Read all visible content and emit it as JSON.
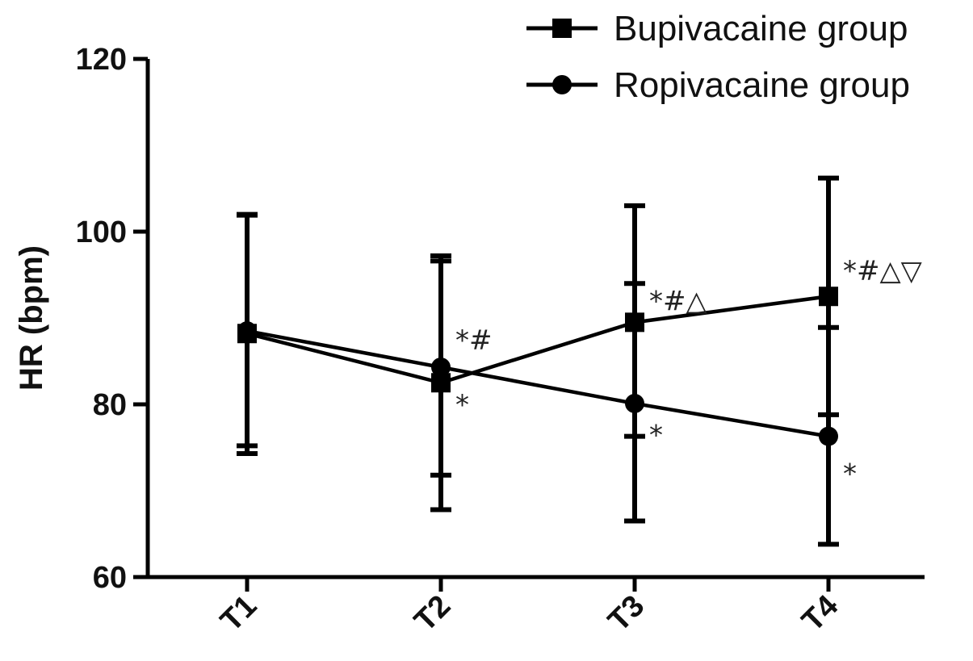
{
  "chart_data": {
    "type": "line",
    "title": "",
    "xlabel": "",
    "ylabel": "HR (bpm)",
    "categories": [
      "T1",
      "T2",
      "T3",
      "T4"
    ],
    "ylim": [
      60,
      120
    ],
    "yticks": [
      "60",
      "80",
      "100",
      "120"
    ],
    "grid": false,
    "legend_position": "top-right",
    "series": [
      {
        "name": "Bupivacaine group",
        "marker": "square",
        "values": [
          88.2,
          82.5,
          89.5,
          92.5
        ],
        "error_low": [
          74.3,
          67.8,
          76.3,
          78.8
        ],
        "error_high": [
          102.0,
          97.2,
          103.0,
          106.2
        ]
      },
      {
        "name": "Ropivacaine group",
        "marker": "circle",
        "values": [
          88.5,
          84.3,
          80.1,
          76.3
        ],
        "error_low": [
          75.2,
          71.8,
          66.5,
          63.8
        ],
        "error_high": [
          101.9,
          96.6,
          94.0,
          88.9
        ]
      }
    ],
    "annotations": [
      {
        "category": "T2",
        "y": 87.5,
        "text": "*#"
      },
      {
        "category": "T2",
        "y": 80.0,
        "text": "*"
      },
      {
        "category": "T3",
        "y": 92.0,
        "text": "*#△"
      },
      {
        "category": "T3",
        "y": 76.5,
        "text": "*"
      },
      {
        "category": "T4",
        "y": 95.5,
        "text": "*#△▽"
      },
      {
        "category": "T4",
        "y": 72.0,
        "text": "*"
      }
    ]
  }
}
